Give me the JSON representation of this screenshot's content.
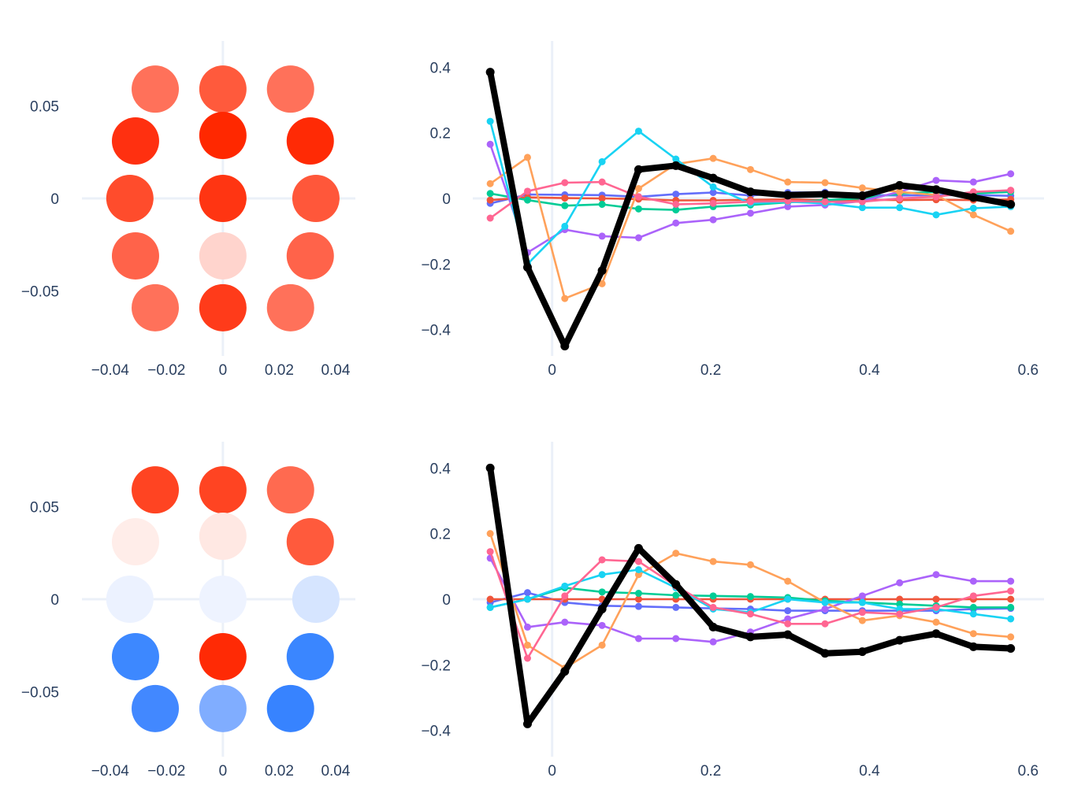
{
  "colors": {
    "axis_text": "#2a3f5f",
    "zeroline": "#ebf0f8",
    "highlight": "#000000",
    "series": [
      "#636efa",
      "#EF553B",
      "#00cc96",
      "#ab63fa",
      "#FFA15A",
      "#19d3f3",
      "#FF6692"
    ]
  },
  "chart_data": [
    {
      "type": "scatter",
      "panel": "top-left",
      "xlim": [
        -0.05,
        0.047
      ],
      "ylim": [
        -0.085,
        0.085
      ],
      "xticks": [
        -0.04,
        -0.02,
        0,
        0.02,
        0.04
      ],
      "xtick_labels": [
        "−0.04",
        "−0.02",
        "0",
        "0.02",
        "0.04"
      ],
      "yticks": [
        -0.05,
        0,
        0.05
      ],
      "ytick_labels": [
        "−0.05",
        "0",
        "0.05"
      ],
      "grid": false,
      "points": [
        {
          "x": -0.024,
          "y": 0.059,
          "color": "#ff715a"
        },
        {
          "x": 0.0,
          "y": 0.059,
          "color": "#ff5a3c"
        },
        {
          "x": 0.024,
          "y": 0.059,
          "color": "#ff715a"
        },
        {
          "x": -0.031,
          "y": 0.031,
          "color": "#ff3010"
        },
        {
          "x": 0.0,
          "y": 0.034,
          "color": "#ff2800"
        },
        {
          "x": 0.031,
          "y": 0.031,
          "color": "#ff2a05"
        },
        {
          "x": -0.033,
          "y": 0.0,
          "color": "#ff4c2c"
        },
        {
          "x": 0.0,
          "y": 0.0,
          "color": "#ff3512"
        },
        {
          "x": 0.033,
          "y": 0.0,
          "color": "#ff573a"
        },
        {
          "x": -0.031,
          "y": -0.031,
          "color": "#ff634a"
        },
        {
          "x": 0.0,
          "y": -0.031,
          "color": "#ffd4cd"
        },
        {
          "x": 0.031,
          "y": -0.031,
          "color": "#ff634a"
        },
        {
          "x": -0.024,
          "y": -0.059,
          "color": "#ff715a"
        },
        {
          "x": 0.0,
          "y": -0.059,
          "color": "#ff3b1a"
        },
        {
          "x": 0.024,
          "y": -0.059,
          "color": "#ff715a"
        }
      ]
    },
    {
      "type": "line",
      "panel": "top-right",
      "xlim": [
        -0.1,
        0.62
      ],
      "ylim": [
        -0.48,
        0.48
      ],
      "xticks": [
        0,
        0.2,
        0.4,
        0.6
      ],
      "xtick_labels": [
        "0",
        "0.2",
        "0.4",
        "0.6"
      ],
      "yticks": [
        -0.4,
        -0.2,
        0,
        0.2,
        0.4
      ],
      "ytick_labels": [
        "−0.4",
        "−0.2",
        "0",
        "0.2",
        "0.4"
      ],
      "grid": false,
      "x": [
        -0.078,
        -0.031,
        0.016,
        0.063,
        0.109,
        0.156,
        0.203,
        0.25,
        0.297,
        0.344,
        0.391,
        0.438,
        0.484,
        0.531,
        0.578
      ],
      "series": [
        {
          "color": "#636efa",
          "values": [
            -0.015,
            0.012,
            0.011,
            0.01,
            0.005,
            0.013,
            0.018,
            0.009,
            0.018,
            0.019,
            0.011,
            0.009,
            0.01,
            0.01,
            0.008
          ]
        },
        {
          "color": "#EF553B",
          "values": [
            -0.005,
            0.003,
            0.001,
            0.0,
            -0.002,
            -0.006,
            -0.006,
            -0.004,
            -0.003,
            -0.005,
            -0.004,
            -0.005,
            -0.004,
            -0.005,
            -0.003
          ]
        },
        {
          "color": "#00cc96",
          "values": [
            0.015,
            -0.005,
            -0.022,
            -0.018,
            -0.032,
            -0.035,
            -0.025,
            -0.02,
            -0.012,
            -0.005,
            0.0,
            0.015,
            0.02,
            0.015,
            0.02
          ]
        },
        {
          "color": "#ab63fa",
          "values": [
            0.165,
            -0.165,
            -0.095,
            -0.115,
            -0.12,
            -0.075,
            -0.065,
            -0.045,
            -0.025,
            -0.02,
            -0.008,
            0.02,
            0.055,
            0.05,
            0.075
          ]
        },
        {
          "color": "#FFA15A",
          "values": [
            0.045,
            0.125,
            -0.305,
            -0.26,
            0.03,
            0.105,
            0.122,
            0.088,
            0.05,
            0.048,
            0.032,
            0.02,
            0.01,
            -0.05,
            -0.1
          ]
        },
        {
          "color": "#19d3f3",
          "values": [
            0.235,
            -0.2,
            -0.085,
            0.112,
            0.205,
            0.12,
            0.035,
            -0.015,
            -0.01,
            -0.015,
            -0.028,
            -0.028,
            -0.05,
            -0.03,
            -0.025
          ]
        },
        {
          "color": "#FF6692",
          "values": [
            -0.06,
            0.022,
            0.048,
            0.05,
            0.005,
            -0.018,
            -0.015,
            -0.01,
            -0.008,
            -0.01,
            -0.01,
            0.0,
            0.005,
            0.02,
            0.025
          ]
        },
        {
          "color": "#000000",
          "highlight": true,
          "values": [
            0.385,
            -0.21,
            -0.45,
            -0.22,
            0.088,
            0.1,
            0.062,
            0.02,
            0.01,
            0.013,
            0.008,
            0.04,
            0.027,
            0.003,
            -0.018
          ]
        }
      ]
    },
    {
      "type": "scatter",
      "panel": "bottom-left",
      "xlim": [
        -0.05,
        0.047
      ],
      "ylim": [
        -0.085,
        0.085
      ],
      "xticks": [
        -0.04,
        -0.02,
        0,
        0.02,
        0.04
      ],
      "xtick_labels": [
        "−0.04",
        "−0.02",
        "0",
        "0.02",
        "0.04"
      ],
      "yticks": [
        -0.05,
        0,
        0.05
      ],
      "ytick_labels": [
        "−0.05",
        "0",
        "0.05"
      ],
      "grid": false,
      "points": [
        {
          "x": -0.024,
          "y": 0.059,
          "color": "#ff4422"
        },
        {
          "x": 0.0,
          "y": 0.059,
          "color": "#ff4422"
        },
        {
          "x": 0.024,
          "y": 0.059,
          "color": "#ff6a50"
        },
        {
          "x": -0.031,
          "y": 0.031,
          "color": "#ffede9"
        },
        {
          "x": 0.0,
          "y": 0.034,
          "color": "#ffe8e3"
        },
        {
          "x": 0.031,
          "y": 0.031,
          "color": "#ff5a3c"
        },
        {
          "x": -0.033,
          "y": 0.0,
          "color": "#ecf2ff"
        },
        {
          "x": 0.0,
          "y": 0.0,
          "color": "#eef3ff"
        },
        {
          "x": 0.033,
          "y": 0.0,
          "color": "#d6e5ff"
        },
        {
          "x": -0.031,
          "y": -0.031,
          "color": "#3d88ff"
        },
        {
          "x": 0.0,
          "y": -0.031,
          "color": "#ff2a05"
        },
        {
          "x": 0.031,
          "y": -0.031,
          "color": "#3a86ff"
        },
        {
          "x": -0.024,
          "y": -0.059,
          "color": "#4288ff"
        },
        {
          "x": 0.0,
          "y": -0.059,
          "color": "#80adff"
        },
        {
          "x": 0.024,
          "y": -0.059,
          "color": "#3783ff"
        }
      ]
    },
    {
      "type": "line",
      "panel": "bottom-right",
      "xlim": [
        -0.1,
        0.62
      ],
      "ylim": [
        -0.48,
        0.48
      ],
      "xticks": [
        0,
        0.2,
        0.4,
        0.6
      ],
      "xtick_labels": [
        "0",
        "0.2",
        "0.4",
        "0.6"
      ],
      "yticks": [
        -0.4,
        -0.2,
        0,
        0.2,
        0.4
      ],
      "ytick_labels": [
        "−0.4",
        "−0.2",
        "0",
        "0.2",
        "0.4"
      ],
      "grid": false,
      "x": [
        -0.078,
        -0.031,
        0.016,
        0.063,
        0.109,
        0.156,
        0.203,
        0.25,
        0.297,
        0.344,
        0.391,
        0.438,
        0.484,
        0.531,
        0.578
      ],
      "series": [
        {
          "color": "#636efa",
          "values": [
            -0.01,
            0.02,
            -0.01,
            -0.02,
            -0.022,
            -0.025,
            -0.028,
            -0.03,
            -0.035,
            -0.035,
            -0.035,
            -0.035,
            -0.035,
            -0.03,
            -0.028
          ]
        },
        {
          "color": "#EF553B",
          "values": [
            0.0,
            0.0,
            0.0,
            0.0,
            0.0,
            0.0,
            0.0,
            0.0,
            0.0,
            0.0,
            0.0,
            0.0,
            0.0,
            0.0,
            0.0
          ]
        },
        {
          "color": "#00cc96",
          "values": [
            -0.025,
            0.0,
            0.035,
            0.022,
            0.018,
            0.012,
            0.01,
            0.008,
            0.005,
            -0.005,
            -0.01,
            -0.015,
            -0.02,
            -0.025,
            -0.025
          ]
        },
        {
          "color": "#ab63fa",
          "values": [
            0.125,
            -0.085,
            -0.07,
            -0.08,
            -0.12,
            -0.12,
            -0.13,
            -0.1,
            -0.06,
            -0.03,
            0.01,
            0.05,
            0.075,
            0.055,
            0.055
          ]
        },
        {
          "color": "#FFA15A",
          "values": [
            0.2,
            -0.14,
            -0.21,
            -0.14,
            0.075,
            0.14,
            0.115,
            0.105,
            0.055,
            -0.01,
            -0.065,
            -0.05,
            -0.07,
            -0.105,
            -0.115
          ]
        },
        {
          "color": "#19d3f3",
          "values": [
            -0.025,
            0.0,
            0.04,
            0.075,
            0.09,
            0.035,
            -0.03,
            -0.04,
            0.0,
            -0.01,
            -0.01,
            -0.03,
            -0.03,
            -0.045,
            -0.06
          ]
        },
        {
          "color": "#FF6692",
          "values": [
            0.145,
            -0.18,
            0.01,
            0.12,
            0.115,
            0.04,
            -0.025,
            -0.045,
            -0.075,
            -0.075,
            -0.04,
            -0.045,
            -0.025,
            0.01,
            0.025
          ]
        },
        {
          "color": "#000000",
          "highlight": true,
          "values": [
            0.4,
            -0.38,
            -0.22,
            -0.03,
            0.155,
            0.045,
            -0.085,
            -0.115,
            -0.108,
            -0.165,
            -0.16,
            -0.125,
            -0.105,
            -0.145,
            -0.15
          ]
        }
      ]
    }
  ]
}
